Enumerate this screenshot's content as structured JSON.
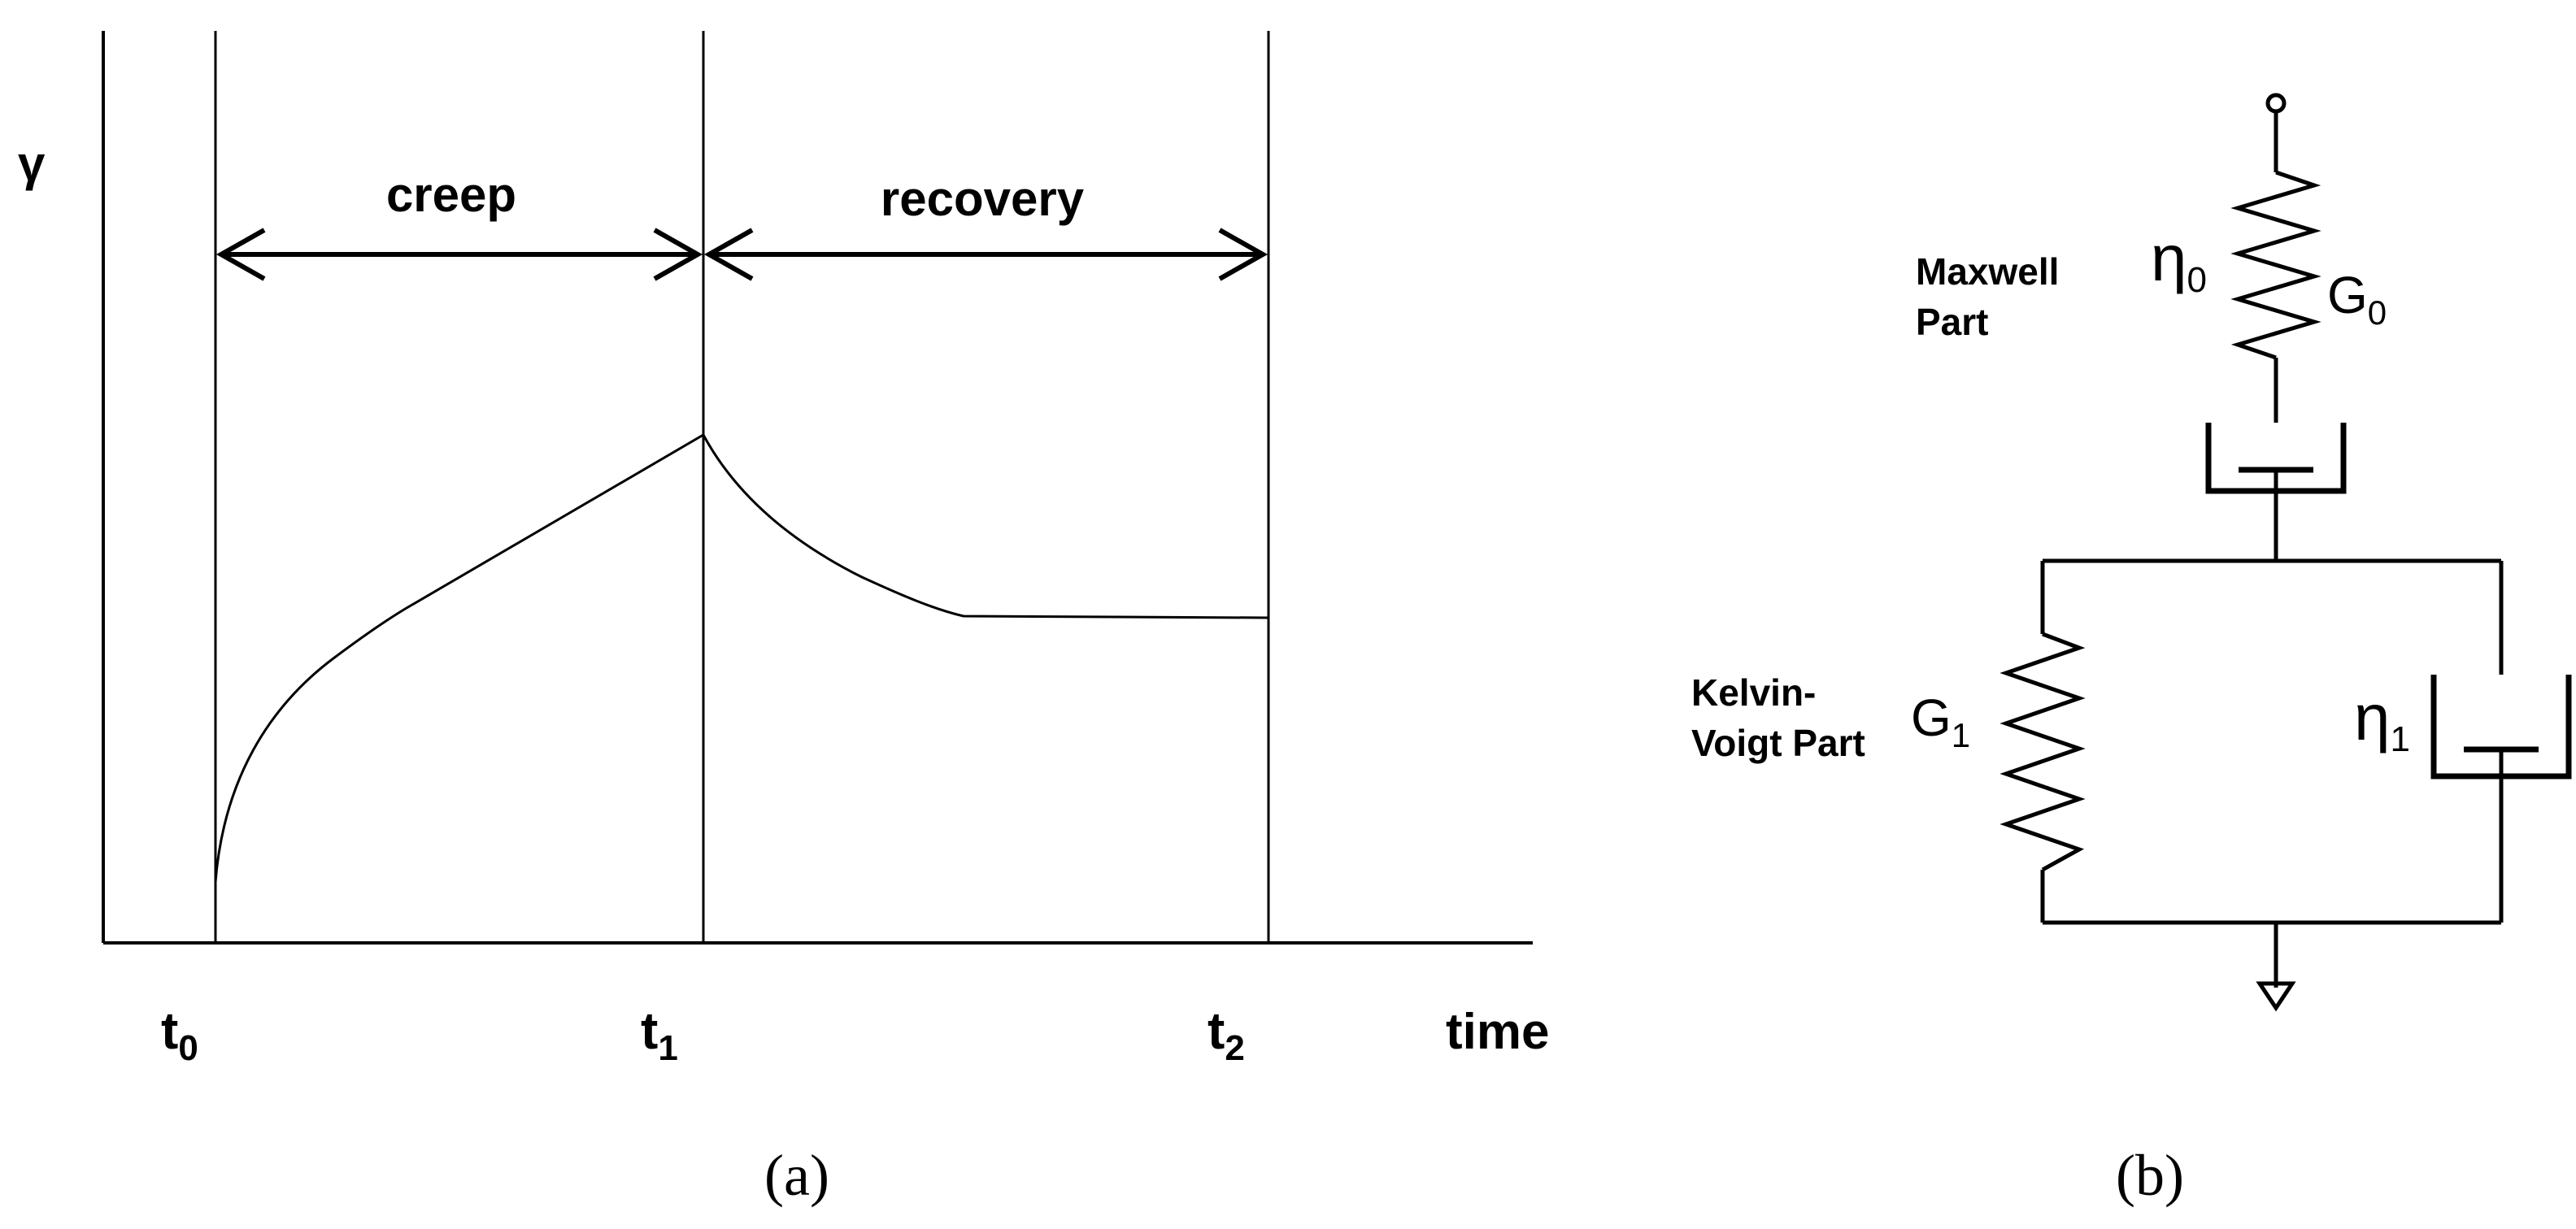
{
  "panel_a": {
    "y_label": "γ",
    "x_label": "time",
    "phase_creep": "creep",
    "phase_recovery": "recovery",
    "ticks": [
      {
        "base": "t",
        "sub": "0"
      },
      {
        "base": "t",
        "sub": "1"
      },
      {
        "base": "t",
        "sub": "2"
      }
    ],
    "caption": "(a)"
  },
  "panel_b": {
    "maxwell_label_line1": "Maxwell",
    "maxwell_label_line2": "Part",
    "kelvin_label_line1": "Kelvin-",
    "kelvin_label_line2": "Voigt Part",
    "eta0": {
      "base": "η",
      "sub": "0"
    },
    "g0": {
      "base": "G",
      "sub": "0"
    },
    "g1": {
      "base": "G",
      "sub": "1"
    },
    "eta1": {
      "base": "η",
      "sub": "1"
    },
    "caption": "(b)"
  }
}
